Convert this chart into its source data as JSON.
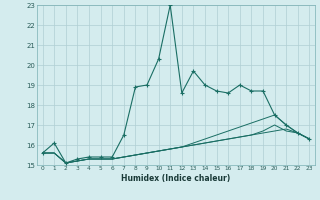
{
  "xlabel": "Humidex (Indice chaleur)",
  "bg_color": "#d4ecee",
  "grid_color": "#b0cfd3",
  "line_color": "#1a6e64",
  "xlim": [
    -0.5,
    23.5
  ],
  "ylim": [
    15,
    23
  ],
  "xticks": [
    0,
    1,
    2,
    3,
    4,
    5,
    6,
    7,
    8,
    9,
    10,
    11,
    12,
    13,
    14,
    15,
    16,
    17,
    18,
    19,
    20,
    21,
    22,
    23
  ],
  "yticks": [
    15,
    16,
    17,
    18,
    19,
    20,
    21,
    22,
    23
  ],
  "series": {
    "main": {
      "x": [
        0,
        1,
        2,
        3,
        4,
        5,
        6,
        7,
        8,
        9,
        10,
        11,
        12,
        13,
        14,
        15,
        16,
        17,
        18,
        19,
        20,
        21,
        22,
        23
      ],
      "y": [
        15.6,
        16.1,
        15.1,
        15.3,
        15.4,
        15.4,
        15.4,
        16.5,
        18.9,
        19.0,
        20.3,
        23.0,
        18.6,
        19.7,
        19.0,
        18.7,
        18.6,
        19.0,
        18.7,
        18.7,
        17.5,
        17.0,
        16.6,
        16.3
      ]
    },
    "lower1": {
      "x": [
        0,
        1,
        2,
        3,
        4,
        5,
        6,
        7,
        8,
        9,
        10,
        11,
        12,
        13,
        14,
        15,
        16,
        17,
        18,
        19,
        20,
        21,
        22,
        23
      ],
      "y": [
        15.6,
        15.6,
        15.1,
        15.2,
        15.3,
        15.3,
        15.3,
        15.4,
        15.5,
        15.6,
        15.7,
        15.8,
        15.9,
        16.0,
        16.1,
        16.2,
        16.3,
        16.4,
        16.5,
        16.6,
        16.7,
        16.8,
        16.6,
        16.3
      ]
    },
    "lower2": {
      "x": [
        0,
        1,
        2,
        3,
        4,
        5,
        6,
        7,
        8,
        9,
        10,
        11,
        12,
        13,
        14,
        15,
        16,
        17,
        18,
        19,
        20,
        21,
        22,
        23
      ],
      "y": [
        15.6,
        15.6,
        15.1,
        15.2,
        15.3,
        15.3,
        15.3,
        15.4,
        15.5,
        15.6,
        15.7,
        15.8,
        15.9,
        16.0,
        16.1,
        16.2,
        16.3,
        16.4,
        16.5,
        16.7,
        17.0,
        16.7,
        16.6,
        16.3
      ]
    },
    "lower3": {
      "x": [
        0,
        1,
        2,
        3,
        4,
        5,
        6,
        7,
        8,
        9,
        10,
        11,
        12,
        13,
        14,
        15,
        16,
        17,
        18,
        19,
        20,
        21,
        22,
        23
      ],
      "y": [
        15.6,
        15.6,
        15.1,
        15.2,
        15.3,
        15.3,
        15.3,
        15.4,
        15.5,
        15.6,
        15.7,
        15.8,
        15.9,
        16.1,
        16.3,
        16.5,
        16.7,
        16.9,
        17.1,
        17.3,
        17.5,
        17.0,
        16.6,
        16.3
      ]
    }
  }
}
